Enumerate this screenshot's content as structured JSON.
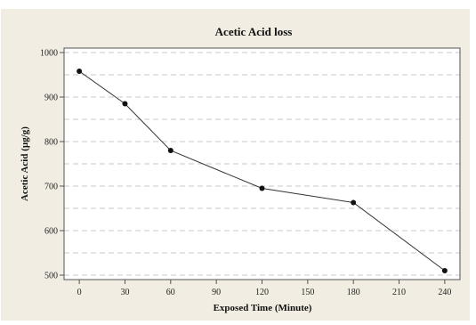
{
  "chart_data": {
    "type": "line",
    "title": "Acetic Acid loss",
    "xlabel": "Exposed Time (Minute)",
    "ylabel": "Acetic Acid (µg/g)",
    "x_ticks": [
      0,
      30,
      60,
      90,
      120,
      150,
      180,
      210,
      240
    ],
    "y_ticks": [
      500,
      600,
      700,
      800,
      900,
      1000
    ],
    "xlim": [
      -10,
      250
    ],
    "ylim": [
      490,
      1010
    ],
    "grid": "horizontal-dashed",
    "series": [
      {
        "x": [
          0,
          30,
          60,
          120,
          180,
          240
        ],
        "y": [
          958,
          885,
          780,
          695,
          663,
          510
        ]
      }
    ],
    "colors": {
      "outer_background": "#f1ede2",
      "plot_background": "#ffffff",
      "line": "#333333",
      "marker": "#111111",
      "grid": "#c8c8c8"
    }
  }
}
